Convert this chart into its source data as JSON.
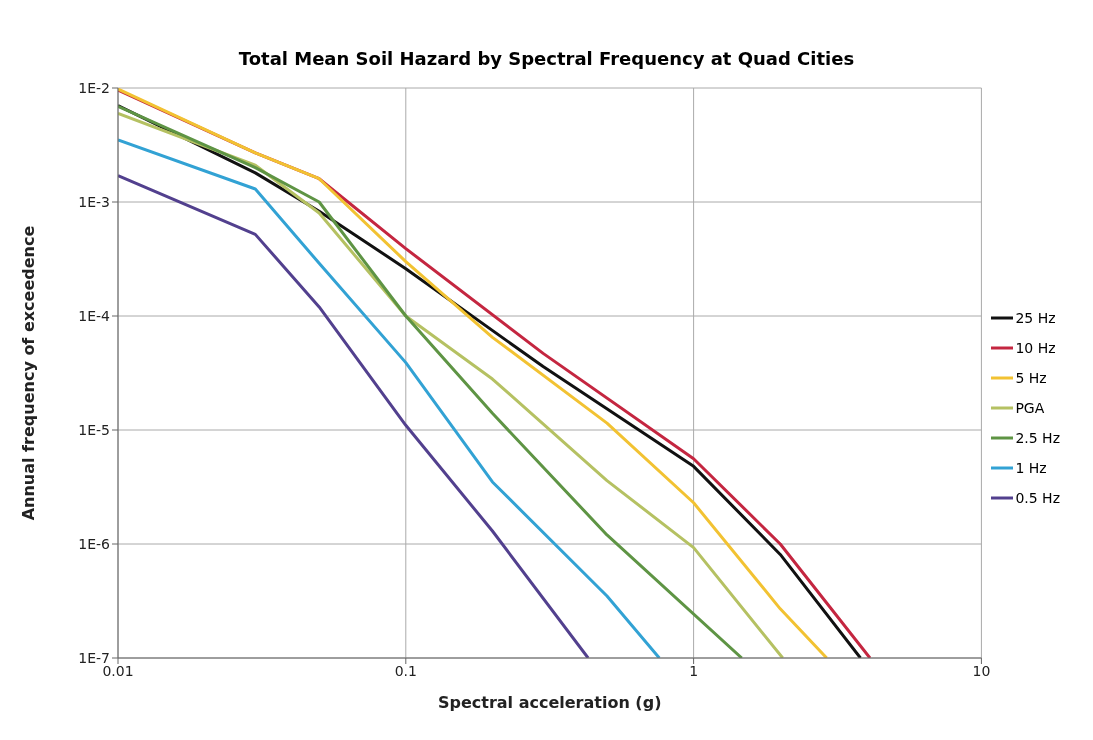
{
  "chart_data": {
    "type": "line",
    "title": "Total Mean Soil Hazard by Spectral Frequency at Quad Cities",
    "xlabel": "Spectral acceleration (g)",
    "ylabel": "Annual frequency of exceedence",
    "log": "xy",
    "grid": true,
    "legend": "right",
    "marker": "none",
    "line_style": "solid",
    "xlim": [
      0.01,
      10
    ],
    "xticks": [
      0.01,
      0.1,
      1,
      10
    ],
    "ylim": [
      1e-07,
      0.01
    ],
    "yticks": [
      {
        "value": 1e-07,
        "label": "1E-7"
      },
      {
        "value": 1e-06,
        "label": "1E-6"
      },
      {
        "value": 1e-05,
        "label": "1E-5"
      },
      {
        "value": 0.0001,
        "label": "1E-4"
      },
      {
        "value": 0.001,
        "label": "1E-3"
      },
      {
        "value": 0.01,
        "label": "1E-2"
      }
    ],
    "series": [
      {
        "name": "25 Hz",
        "color": "#111111",
        "x": [
          0.01,
          0.03,
          0.05,
          0.1,
          0.3,
          1,
          2,
          3.8
        ],
        "values": [
          0.007,
          0.0018,
          0.00083,
          0.00026,
          3.6e-05,
          4.8e-06,
          8.1e-07,
          1e-07
        ]
      },
      {
        "name": "10 Hz",
        "color": "#c42640",
        "x": [
          0.01,
          0.03,
          0.05,
          0.1,
          0.3,
          1,
          2,
          4.1
        ],
        "values": [
          0.0096,
          0.0027,
          0.0016,
          0.00039,
          4.7e-05,
          5.6e-06,
          1e-06,
          1e-07
        ]
      },
      {
        "name": "5 Hz",
        "color": "#f2c232",
        "x": [
          0.01,
          0.03,
          0.05,
          0.1,
          0.2,
          0.5,
          1,
          2,
          2.9
        ],
        "values": [
          0.0098,
          0.0027,
          0.0016,
          0.0003,
          6.5e-05,
          1.15e-05,
          2.3e-06,
          2.7e-07,
          1e-07
        ]
      },
      {
        "name": "PGA",
        "color": "#b5c162",
        "x": [
          0.01,
          0.03,
          0.05,
          0.1,
          0.2,
          0.5,
          1,
          2.04
        ],
        "values": [
          0.006,
          0.0021,
          0.0008,
          0.0001,
          2.8e-05,
          3.6e-06,
          9.3e-07,
          1e-07
        ]
      },
      {
        "name": "2.5 Hz",
        "color": "#5e9444",
        "x": [
          0.01,
          0.03,
          0.05,
          0.1,
          0.2,
          0.5,
          1.47
        ],
        "values": [
          0.0069,
          0.002,
          0.001,
          0.0001,
          1.4e-05,
          1.2e-06,
          1e-07
        ]
      },
      {
        "name": "1 Hz",
        "color": "#32a2d4",
        "x": [
          0.01,
          0.03,
          0.05,
          0.1,
          0.2,
          0.5,
          0.76
        ],
        "values": [
          0.0035,
          0.0013,
          0.00029,
          3.9e-05,
          3.5e-06,
          3.5e-07,
          1e-07
        ]
      },
      {
        "name": "0.5 Hz",
        "color": "#52408e",
        "x": [
          0.01,
          0.03,
          0.05,
          0.1,
          0.2,
          0.43
        ],
        "values": [
          0.0017,
          0.00052,
          0.00012,
          1.1e-05,
          1.3e-06,
          1e-07
        ]
      }
    ]
  }
}
